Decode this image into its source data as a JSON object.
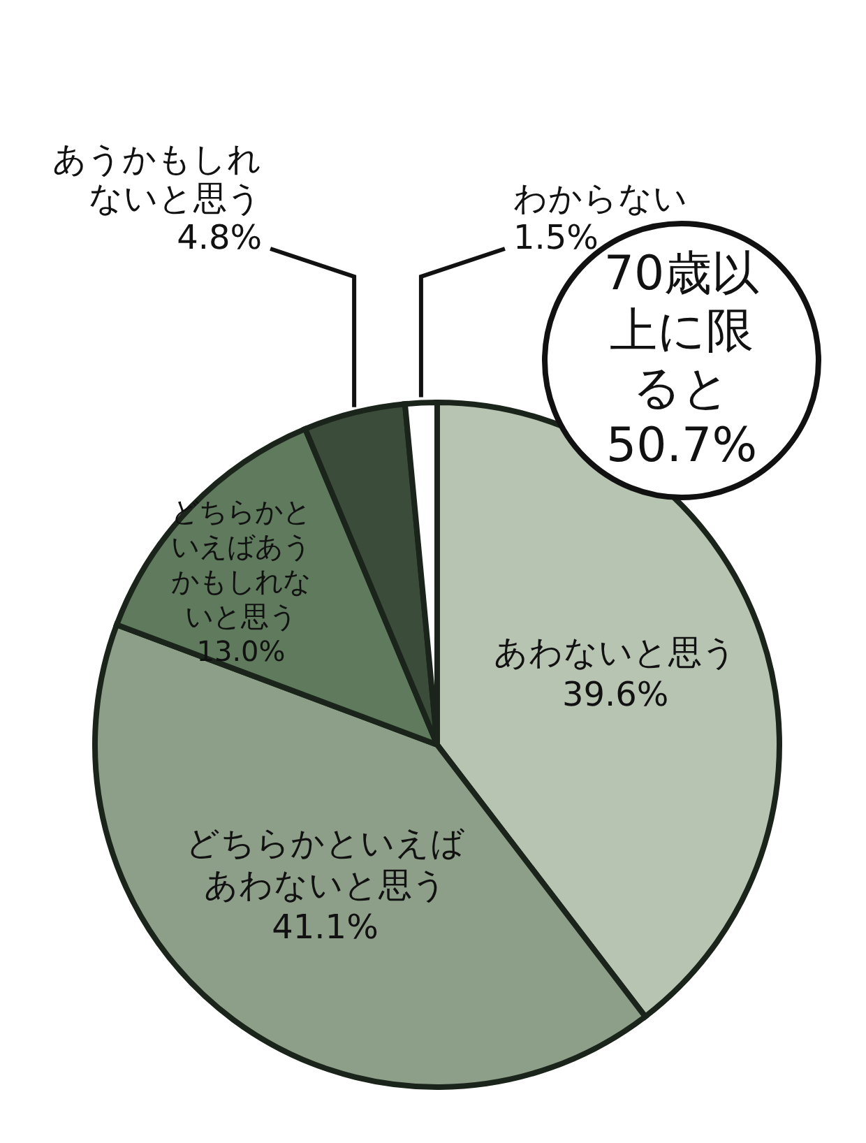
{
  "chart_data": {
    "type": "pie",
    "categories": [
      "あわないと思う",
      "どちらかといえばあわないと思う",
      "どちらかといえばあうかもしれないと思う",
      "あうかもしれないと思う",
      "わからない"
    ],
    "values": [
      39.6,
      41.1,
      13.0,
      4.8,
      1.5
    ],
    "colors": [
      "#b8c4b2",
      "#8e9f89",
      "#5f7a5d",
      "#3c4c3b",
      "#ffffff"
    ],
    "value_labels": [
      "39.6%",
      "41.1%",
      "13.0%",
      "4.8%",
      "1.5%"
    ],
    "annotations": [
      "70歳以上に限ると50.7%"
    ],
    "legend": false
  }
}
